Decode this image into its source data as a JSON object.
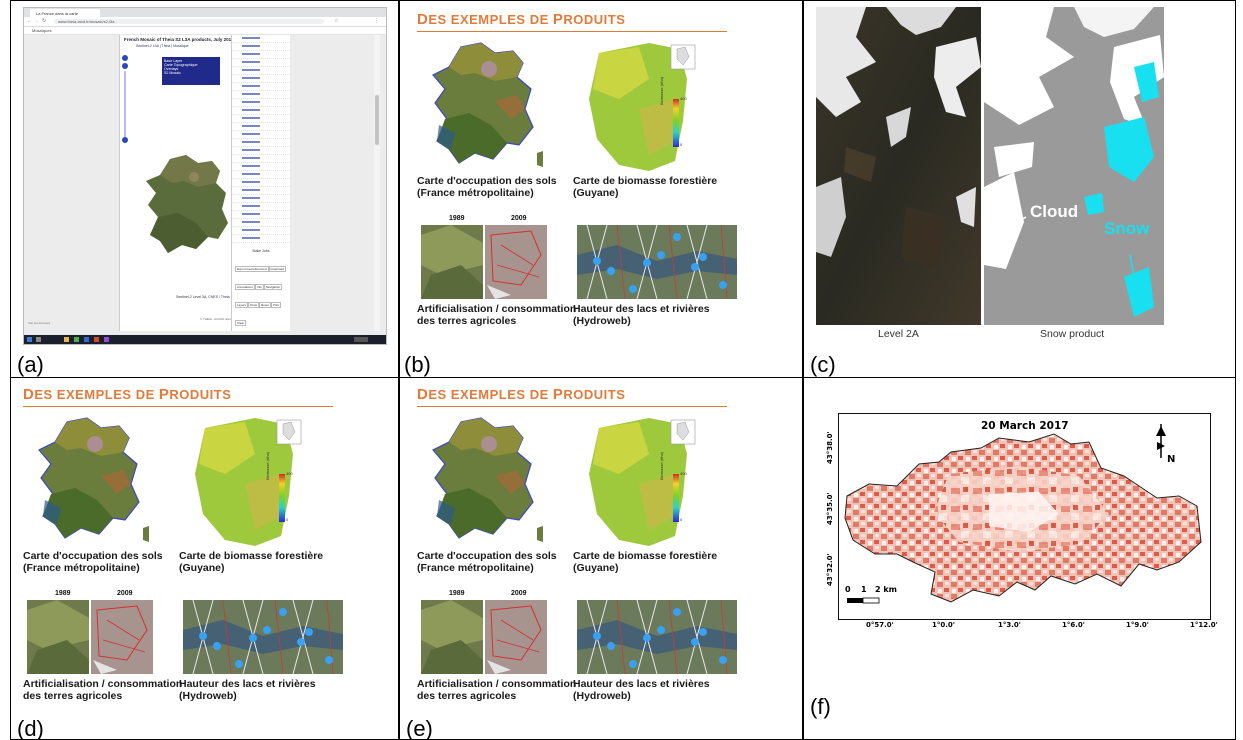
{
  "panels": {
    "a": {
      "letter": "(a)"
    },
    "b": {
      "letter": "(b)"
    },
    "c": {
      "letter": "(c)"
    },
    "d": {
      "letter": "(d)"
    },
    "e": {
      "letter": "(e)"
    },
    "f": {
      "letter": "(f)"
    }
  },
  "browser": {
    "tab_title": "La France dans la carte",
    "url": "www.theia-land.fr/mosaic/s2-l3a",
    "bookmark": "Mosaïques",
    "map_title": "French Mosaic of Theia S2 L3A products, July 2019",
    "map_subtitle": "Sentinel-2 L3A | Theia | Mosaïque",
    "layer_box": [
      "Base Layer",
      "Carte Topographique",
      "Overlays",
      "S2 Mosaic"
    ],
    "credit": "Sentinel-2 Level 3A, CNES / Theia",
    "attribution": "© THEIA - ArcGIS, Esri",
    "bottom_note": "Voir les données",
    "side_header": "Make Jobs",
    "side_buttons": [
      "Export Georeferenced",
      "Download",
      "Annotations",
      "Info",
      "Navigation",
      "Layers",
      "Draw",
      "Reset",
      "Print",
      "Clear"
    ]
  },
  "slide": {
    "title_cap1": "D",
    "title_rest1": "ES EXEMPLES DE ",
    "title_cap2": "P",
    "title_rest2": "RODUITS",
    "caption1_l1": "Carte d'occupation des sols",
    "caption1_l2": "(France métropolitaine)",
    "caption2_l1": "Carte de biomasse forestière",
    "caption2_l2": "(Guyane)",
    "year1": "1989",
    "year2": "2009",
    "caption3_l1": "Artificialisation / consommation",
    "caption3_l2": "des terres agricoles",
    "caption4_l1": "Hauteur des lacs et rivières",
    "caption4_l2": "(Hydroweb)",
    "legend_label": "Biomasse (t/ha)",
    "legend_max": "400",
    "legend_min": "0"
  },
  "snow": {
    "cloud_label": "Cloud",
    "snow_label": "Snow",
    "caption_left": "Level 2A",
    "caption_right": "Snow product",
    "colors": {
      "snow": "#19e0f0",
      "cloud": "#ffffff",
      "bg": "#9a9a9a"
    }
  },
  "fmap": {
    "title": "20 March 2017",
    "north_label": "N",
    "x_ticks": [
      "0°57.0'",
      "1°0.0'",
      "1°3.0'",
      "1°6.0'",
      "1°9.0'",
      "1°12.0'"
    ],
    "y_ticks": [
      "43°38.0'",
      "43°35.0'",
      "43°32.0'"
    ],
    "scalebar": {
      "labels": [
        "0",
        "1",
        "2 km"
      ]
    }
  }
}
